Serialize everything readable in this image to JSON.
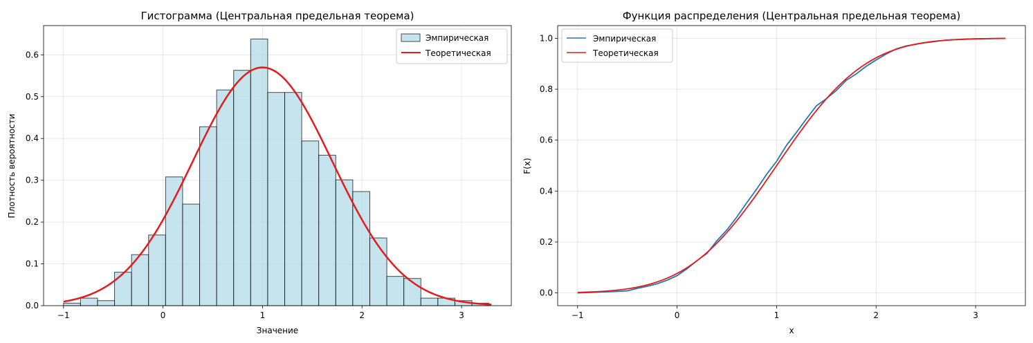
{
  "chart_data": [
    {
      "type": "bar",
      "title": "Гистограмма (Центральная предельная теорема)",
      "xlabel": "Значение",
      "ylabel": "Плотность вероятности",
      "xlim": [
        -1.2,
        3.5
      ],
      "ylim": [
        0,
        0.67
      ],
      "xticks": [
        -1,
        0,
        1,
        2,
        3
      ],
      "yticks": [
        0.0,
        0.1,
        0.2,
        0.3,
        0.4,
        0.5,
        0.6
      ],
      "grid": true,
      "legend_position": "top-right",
      "bin_edges": [
        -1.0,
        -0.829,
        -0.658,
        -0.487,
        -0.316,
        -0.145,
        0.026,
        0.197,
        0.368,
        0.539,
        0.71,
        0.881,
        1.052,
        1.223,
        1.394,
        1.565,
        1.736,
        1.907,
        2.078,
        2.249,
        2.42,
        2.591,
        2.762,
        2.933,
        3.104,
        3.275
      ],
      "bar_values": [
        0.006,
        0.018,
        0.012,
        0.08,
        0.122,
        0.169,
        0.308,
        0.243,
        0.428,
        0.516,
        0.563,
        0.638,
        0.51,
        0.51,
        0.394,
        0.36,
        0.301,
        0.273,
        0.162,
        0.07,
        0.065,
        0.018,
        0.018,
        0.012,
        0.006
      ],
      "bar_color": "#add8e6",
      "series": [
        {
          "name": "Эмпирическая",
          "kind": "histogram",
          "color": "#add8e6"
        },
        {
          "name": "Теоретическая",
          "kind": "line",
          "color": "#e41a1c",
          "mean": 1.0,
          "std": 0.7
        }
      ]
    },
    {
      "type": "line",
      "title": "Функция распределения (Центральная предельная теорема)",
      "xlabel": "x",
      "ylabel": "F(x)",
      "xlim": [
        -1.2,
        3.5
      ],
      "ylim": [
        -0.05,
        1.05
      ],
      "xticks": [
        -1,
        0,
        1,
        2,
        3
      ],
      "yticks": [
        0.0,
        0.2,
        0.4,
        0.6,
        0.8,
        1.0
      ],
      "grid": true,
      "legend_position": "top-left",
      "series": [
        {
          "name": "Эмпирическая",
          "color": "#1f77b4",
          "x": [
            -1.0,
            -0.8,
            -0.6,
            -0.5,
            -0.4,
            -0.3,
            -0.2,
            -0.1,
            0.0,
            0.1,
            0.2,
            0.3,
            0.4,
            0.5,
            0.6,
            0.7,
            0.8,
            0.9,
            1.0,
            1.1,
            1.2,
            1.3,
            1.4,
            1.5,
            1.6,
            1.7,
            1.8,
            1.9,
            2.0,
            2.1,
            2.2,
            2.3,
            2.5,
            2.7,
            3.0,
            3.3
          ],
          "y": [
            0.0,
            0.003,
            0.006,
            0.008,
            0.018,
            0.026,
            0.036,
            0.05,
            0.068,
            0.095,
            0.127,
            0.155,
            0.205,
            0.247,
            0.298,
            0.354,
            0.408,
            0.466,
            0.517,
            0.58,
            0.631,
            0.684,
            0.735,
            0.763,
            0.795,
            0.835,
            0.86,
            0.89,
            0.915,
            0.938,
            0.958,
            0.97,
            0.983,
            0.993,
            0.998,
            1.0
          ]
        },
        {
          "name": "Теоретическая",
          "color": "#e41a1c",
          "kind": "normal_cdf",
          "mean": 1.0,
          "std": 0.7,
          "x_range": [
            -1.0,
            3.3
          ]
        }
      ]
    }
  ]
}
